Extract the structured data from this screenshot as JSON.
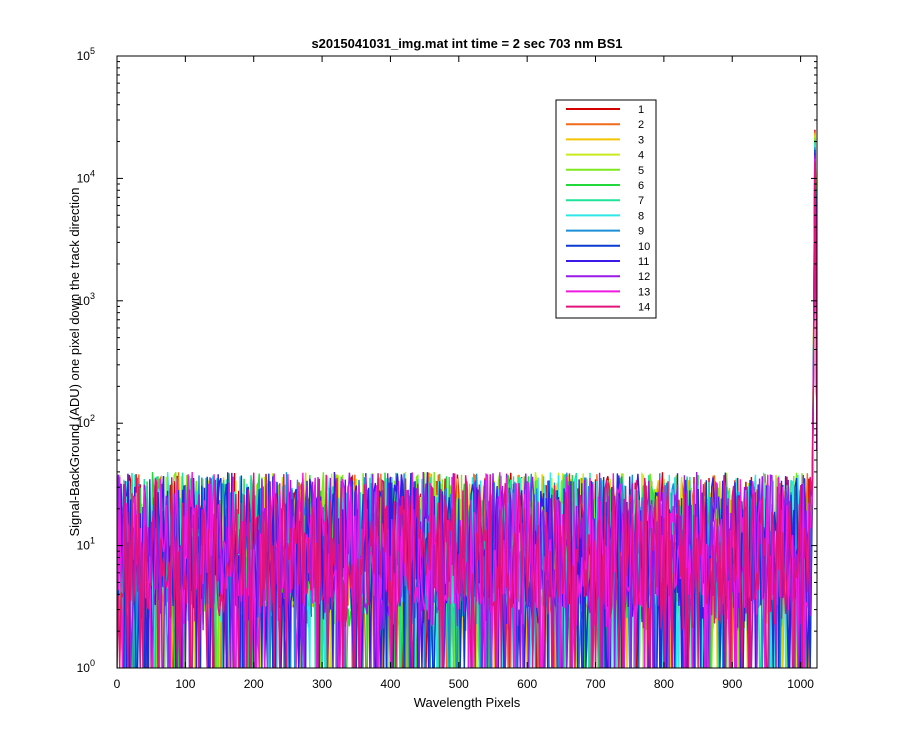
{
  "chart_data": {
    "type": "line",
    "title": "s2015041031_img.mat int time = 2 sec  703 nm BS1",
    "xlabel": "Wavelength Pixels",
    "ylabel": "Signal-BackGround (ADU) one pixel down the track direction",
    "xlim": [
      0,
      1024
    ],
    "ylim": [
      1,
      100000
    ],
    "yscale": "log",
    "grid": false,
    "legend_position": "top-right-inside",
    "x_ticks": [
      "0",
      "100",
      "200",
      "300",
      "400",
      "500",
      "600",
      "700",
      "800",
      "900",
      "1000"
    ],
    "y_ticks": [
      {
        "base": "10",
        "exp": "0"
      },
      {
        "base": "10",
        "exp": "1"
      },
      {
        "base": "10",
        "exp": "2"
      },
      {
        "base": "10",
        "exp": "3"
      },
      {
        "base": "10",
        "exp": "4"
      },
      {
        "base": "10",
        "exp": "5"
      }
    ],
    "series_description": "noise of roughly 2-40 ADU across pixels 0-1015, sharp peak near pixel 1020",
    "noise_range_adu": [
      1,
      50
    ],
    "peak": {
      "x": 1021,
      "y": 25000
    },
    "series": [
      {
        "name": "1",
        "color": "#d40000"
      },
      {
        "name": "2",
        "color": "#f26a1b"
      },
      {
        "name": "3",
        "color": "#f5c400"
      },
      {
        "name": "4",
        "color": "#c8ea1e"
      },
      {
        "name": "5",
        "color": "#7ee81e"
      },
      {
        "name": "6",
        "color": "#22d83a"
      },
      {
        "name": "7",
        "color": "#20e29a"
      },
      {
        "name": "8",
        "color": "#2ee8e8"
      },
      {
        "name": "9",
        "color": "#1a8fd8"
      },
      {
        "name": "10",
        "color": "#0a3ad0"
      },
      {
        "name": "11",
        "color": "#3a1ae8"
      },
      {
        "name": "12",
        "color": "#9a1ae8"
      },
      {
        "name": "13",
        "color": "#ee1ae0"
      },
      {
        "name": "14",
        "color": "#e0147a"
      }
    ]
  }
}
